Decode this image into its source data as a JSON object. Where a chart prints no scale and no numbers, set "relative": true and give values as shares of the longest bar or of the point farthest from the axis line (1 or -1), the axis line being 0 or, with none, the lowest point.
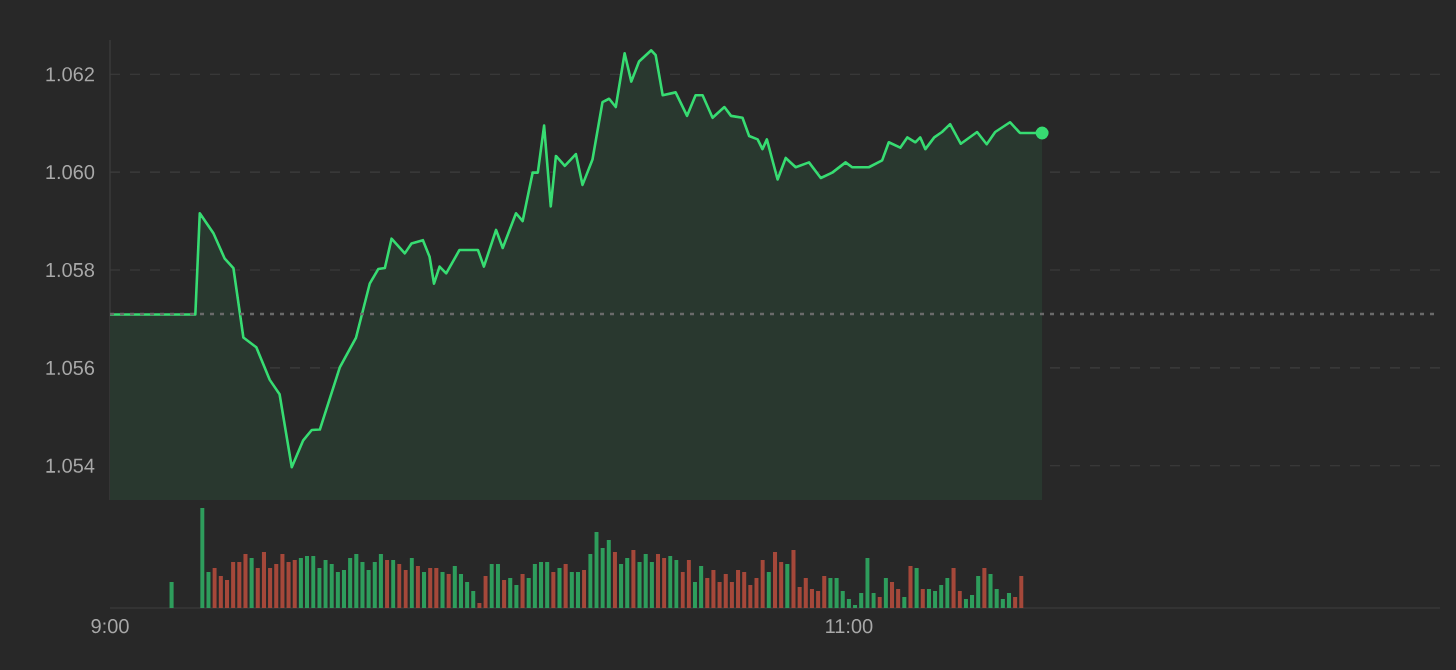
{
  "chart_data": [
    {
      "type": "area",
      "color": "#37dc72",
      "x": [
        9.0,
        9.231,
        9.243,
        9.28,
        9.31,
        9.334,
        9.361,
        9.396,
        9.432,
        9.459,
        9.492,
        9.523,
        9.546,
        9.568,
        9.622,
        9.666,
        9.703,
        9.726,
        9.744,
        9.762,
        9.798,
        9.816,
        9.847,
        9.865,
        9.877,
        9.892,
        9.91,
        9.946,
        9.996,
        10.012,
        10.045,
        10.063,
        10.099,
        10.117,
        10.144,
        10.158,
        10.175,
        10.193,
        10.207,
        10.231,
        10.261,
        10.279,
        10.306,
        10.333,
        10.351,
        10.369,
        10.393,
        10.411,
        10.432,
        10.465,
        10.477,
        10.496,
        10.531,
        10.562,
        10.585,
        10.604,
        10.631,
        10.663,
        10.681,
        10.712,
        10.73,
        10.753,
        10.766,
        10.778,
        10.807,
        10.829,
        10.856,
        10.892,
        10.924,
        10.955,
        10.991,
        11.009,
        11.054,
        11.09,
        11.108,
        11.139,
        11.158,
        11.18,
        11.193,
        11.207,
        11.231,
        11.252,
        11.274,
        11.303,
        11.347,
        11.373,
        11.396,
        11.436,
        11.463,
        11.496,
        11.523
      ],
      "values": [
        1.05709,
        1.05709,
        1.05916,
        1.05875,
        1.05824,
        1.05804,
        1.05662,
        1.05642,
        1.05576,
        1.05546,
        1.05397,
        1.05452,
        1.05473,
        1.05474,
        1.05601,
        1.05662,
        1.05772,
        1.05802,
        1.05804,
        1.05864,
        1.05834,
        1.05854,
        1.05861,
        1.05827,
        1.05772,
        1.05807,
        1.05793,
        1.05841,
        1.05841,
        1.05807,
        1.05882,
        1.05845,
        1.05916,
        1.059,
        1.05999,
        1.05999,
        1.06095,
        1.0593,
        1.06033,
        1.06013,
        1.06037,
        1.05974,
        1.06026,
        1.06143,
        1.0615,
        1.06133,
        1.06243,
        1.06185,
        1.06226,
        1.06249,
        1.06239,
        1.06157,
        1.06163,
        1.06115,
        1.06157,
        1.06157,
        1.06111,
        1.06133,
        1.06115,
        1.06111,
        1.06074,
        1.06067,
        1.06047,
        1.06067,
        1.05985,
        1.06029,
        1.0601,
        1.0602,
        1.05988,
        1.05999,
        1.0602,
        1.0601,
        1.0601,
        1.06024,
        1.06061,
        1.0605,
        1.06071,
        1.06061,
        1.06071,
        1.06047,
        1.06071,
        1.06082,
        1.06098,
        1.06058,
        1.06082,
        1.06057,
        1.06082,
        1.06102,
        1.0608,
        1.0608,
        1.0608
      ],
      "xlim": [
        9,
        12.6
      ],
      "ylim": [
        1.0533,
        1.0627
      ],
      "yticks": [
        1.054,
        1.056,
        1.058,
        {
          "value": 1.06,
          "label": "1.060"
        },
        1.062
      ],
      "grid": "y",
      "tick_labels": "y",
      "ref_lines": [
        {
          "axis": "y",
          "value": 1.0571,
          "line_style": "dotted",
          "color": "#6a6a6a"
        }
      ]
    },
    {
      "type": "bar",
      "relative": true,
      "xlim": [
        9,
        12.6
      ],
      "xticks": [
        {
          "value": 9,
          "label": "9:00"
        },
        {
          "value": 11,
          "label": "11:00"
        }
      ],
      "x": [
        9.1667,
        9.25,
        9.2667,
        9.2833,
        9.3,
        9.3167,
        9.3333,
        9.35,
        9.3667,
        9.3833,
        9.4,
        9.4167,
        9.4333,
        9.45,
        9.4667,
        9.4833,
        9.5,
        9.5167,
        9.5333,
        9.55,
        9.5667,
        9.5833,
        9.6,
        9.6167,
        9.6333,
        9.65,
        9.6667,
        9.6833,
        9.7,
        9.7167,
        9.7333,
        9.75,
        9.7667,
        9.7833,
        9.8,
        9.8167,
        9.8333,
        9.85,
        9.8667,
        9.8833,
        9.9,
        9.9167,
        9.9333,
        9.95,
        9.9667,
        9.9833,
        10,
        10.0167,
        10.0333,
        10.05,
        10.0667,
        10.0833,
        10.1,
        10.1167,
        10.1333,
        10.15,
        10.1667,
        10.1833,
        10.2,
        10.2167,
        10.2333,
        10.25,
        10.2667,
        10.2833,
        10.3,
        10.3167,
        10.3333,
        10.35,
        10.3667,
        10.3833,
        10.4,
        10.4167,
        10.4333,
        10.45,
        10.4667,
        10.4833,
        10.5,
        10.5167,
        10.5333,
        10.55,
        10.5667,
        10.5833,
        10.6,
        10.6167,
        10.6333,
        10.65,
        10.6667,
        10.6833,
        10.7,
        10.7167,
        10.7333,
        10.75,
        10.7667,
        10.7833,
        10.8,
        10.8167,
        10.8333,
        10.85,
        10.8667,
        10.8833,
        10.9,
        10.9167,
        10.9333,
        10.95,
        10.9667,
        10.9833,
        11,
        11.0167,
        11.0333,
        11.05,
        11.0667,
        11.0833,
        11.1,
        11.1167,
        11.1333,
        11.15,
        11.1667,
        11.1833,
        11.2,
        11.2167,
        11.2333,
        11.25,
        11.2667,
        11.2833,
        11.3,
        11.3167,
        11.3333,
        11.35,
        11.3667,
        11.3833,
        11.4,
        11.4167,
        11.4333,
        11.45,
        11.4667
      ],
      "values": [
        0.26,
        1,
        0.36,
        0.4,
        0.32,
        0.28,
        0.46,
        0.46,
        0.54,
        0.5,
        0.4,
        0.56,
        0.4,
        0.44,
        0.54,
        0.46,
        0.48,
        0.5,
        0.52,
        0.52,
        0.4,
        0.48,
        0.44,
        0.36,
        0.38,
        0.5,
        0.54,
        0.46,
        0.38,
        0.46,
        0.54,
        0.48,
        0.48,
        0.44,
        0.38,
        0.5,
        0.42,
        0.36,
        0.4,
        0.4,
        0.36,
        0.34,
        0.42,
        0.34,
        0.26,
        0.17,
        0.05,
        0.32,
        0.44,
        0.44,
        0.28,
        0.3,
        0.23,
        0.34,
        0.3,
        0.44,
        0.46,
        0.46,
        0.36,
        0.4,
        0.44,
        0.36,
        0.36,
        0.38,
        0.54,
        0.76,
        0.6,
        0.68,
        0.56,
        0.44,
        0.5,
        0.58,
        0.46,
        0.54,
        0.46,
        0.54,
        0.5,
        0.52,
        0.48,
        0.36,
        0.48,
        0.26,
        0.42,
        0.3,
        0.38,
        0.26,
        0.34,
        0.26,
        0.38,
        0.36,
        0.23,
        0.3,
        0.48,
        0.36,
        0.56,
        0.46,
        0.44,
        0.58,
        0.21,
        0.3,
        0.19,
        0.17,
        0.32,
        0.3,
        0.3,
        0.17,
        0.09,
        0.03,
        0.15,
        0.5,
        0.15,
        0.11,
        0.3,
        0.26,
        0.19,
        0.11,
        0.42,
        0.4,
        0.19,
        0.19,
        0.17,
        0.23,
        0.3,
        0.4,
        0.17,
        0.09,
        0.13,
        0.32,
        0.4,
        0.34,
        0.19,
        0.09,
        0.15,
        0.11,
        0.32
      ],
      "colors": [
        "#2e9d5c",
        "#2e9d5c",
        "#2e9d5c",
        "#a5483a",
        "#a5483a",
        "#a5483a",
        "#a5483a",
        "#a5483a",
        "#a5483a",
        "#2e9d5c",
        "#a5483a",
        "#a5483a",
        "#a5483a",
        "#a5483a",
        "#a5483a",
        "#a5483a",
        "#a5483a",
        "#2e9d5c",
        "#2e9d5c",
        "#2e9d5c",
        "#2e9d5c",
        "#2e9d5c",
        "#2e9d5c",
        "#2e9d5c",
        "#2e9d5c",
        "#2e9d5c",
        "#2e9d5c",
        "#2e9d5c",
        "#2e9d5c",
        "#2e9d5c",
        "#2e9d5c",
        "#a5483a",
        "#2e9d5c",
        "#a5483a",
        "#a5483a",
        "#2e9d5c",
        "#a5483a",
        "#2e9d5c",
        "#a5483a",
        "#a5483a",
        "#2e9d5c",
        "#a5483a",
        "#2e9d5c",
        "#2e9d5c",
        "#2e9d5c",
        "#2e9d5c",
        "#a5483a",
        "#a5483a",
        "#2e9d5c",
        "#2e9d5c",
        "#a5483a",
        "#2e9d5c",
        "#2e9d5c",
        "#a5483a",
        "#2e9d5c",
        "#2e9d5c",
        "#2e9d5c",
        "#2e9d5c",
        "#a5483a",
        "#2e9d5c",
        "#a5483a",
        "#2e9d5c",
        "#2e9d5c",
        "#a5483a",
        "#2e9d5c",
        "#2e9d5c",
        "#2e9d5c",
        "#2e9d5c",
        "#a5483a",
        "#2e9d5c",
        "#2e9d5c",
        "#a5483a",
        "#2e9d5c",
        "#2e9d5c",
        "#2e9d5c",
        "#a5483a",
        "#a5483a",
        "#2e9d5c",
        "#2e9d5c",
        "#a5483a",
        "#a5483a",
        "#2e9d5c",
        "#2e9d5c",
        "#a5483a",
        "#a5483a",
        "#a5483a",
        "#a5483a",
        "#a5483a",
        "#a5483a",
        "#a5483a",
        "#a5483a",
        "#a5483a",
        "#a5483a",
        "#2e9d5c",
        "#a5483a",
        "#a5483a",
        "#2e9d5c",
        "#a5483a",
        "#a5483a",
        "#a5483a",
        "#a5483a",
        "#a5483a",
        "#a5483a",
        "#2e9d5c",
        "#2e9d5c",
        "#2e9d5c",
        "#2e9d5c",
        "#2e9d5c",
        "#2e9d5c",
        "#2e9d5c",
        "#2e9d5c",
        "#a5483a",
        "#2e9d5c",
        "#a5483a",
        "#a5483a",
        "#2e9d5c",
        "#a5483a",
        "#2e9d5c",
        "#a5483a",
        "#2e9d5c",
        "#2e9d5c",
        "#2e9d5c",
        "#2e9d5c",
        "#a5483a",
        "#a5483a",
        "#2e9d5c",
        "#2e9d5c",
        "#2e9d5c",
        "#a5483a",
        "#2e9d5c",
        "#2e9d5c",
        "#2e9d5c",
        "#2e9d5c",
        "#a5483a",
        "#a5483a"
      ]
    }
  ]
}
